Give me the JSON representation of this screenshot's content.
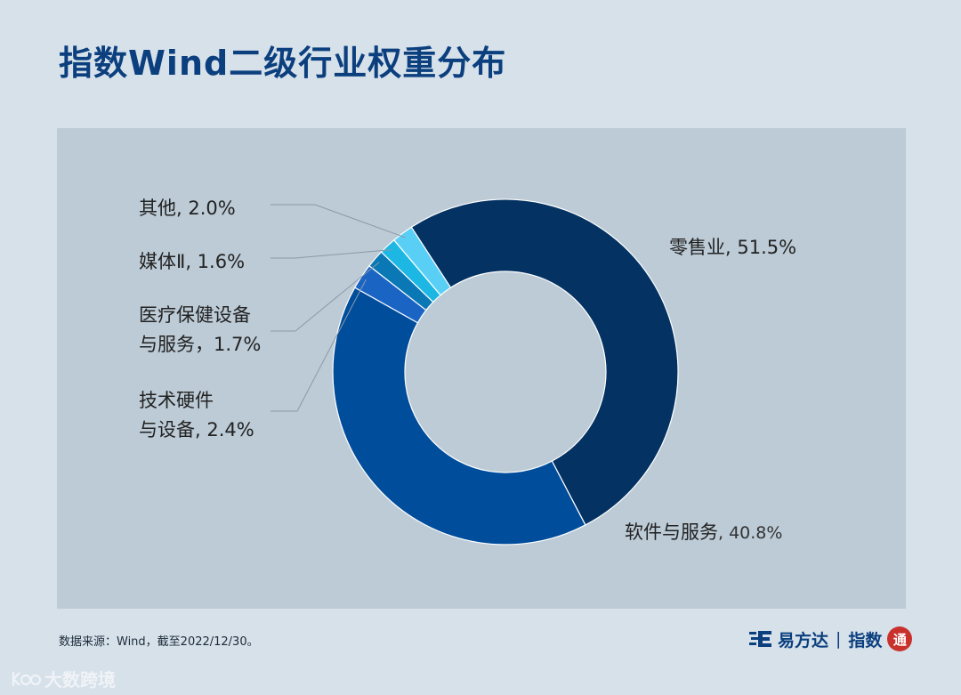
{
  "title": "指数Wind二级行业权重分布",
  "chart_data": {
    "type": "pie",
    "donut": true,
    "slices": [
      {
        "label": "零售业",
        "value": 51.5,
        "display": "零售业, 51.5%",
        "color": "#033263"
      },
      {
        "label": "软件与服务",
        "value": 40.8,
        "display_name": "软件与服务",
        "display_pct": ", 40.8%",
        "color": "#004d9c"
      },
      {
        "label": "技术硬件与设备",
        "value": 2.4,
        "display_lines": [
          "技术硬件",
          "与设备, 2.4%"
        ],
        "color": "#1a64c4"
      },
      {
        "label": "医疗保健设备与服务",
        "value": 1.7,
        "display_lines": [
          "医疗保健设备",
          "与服务，1.7%"
        ],
        "color": "#0a78b5"
      },
      {
        "label": "媒体Ⅱ",
        "value": 1.6,
        "display": "媒体Ⅱ, 1.6%",
        "color": "#1db7e3"
      },
      {
        "label": "其他",
        "value": 2.0,
        "display": "其他, 2.0%",
        "color": "#5acff6"
      }
    ]
  },
  "footer": {
    "source": "数据来源：Wind，截至2022/12/30。",
    "brand_name": "易方达",
    "brand_product": "指数",
    "seal_text": "通"
  },
  "watermark": "大数跨境",
  "colors": {
    "title": "#0b3f7e",
    "background": "#d6e1ea",
    "panel": "#bccbd6"
  }
}
